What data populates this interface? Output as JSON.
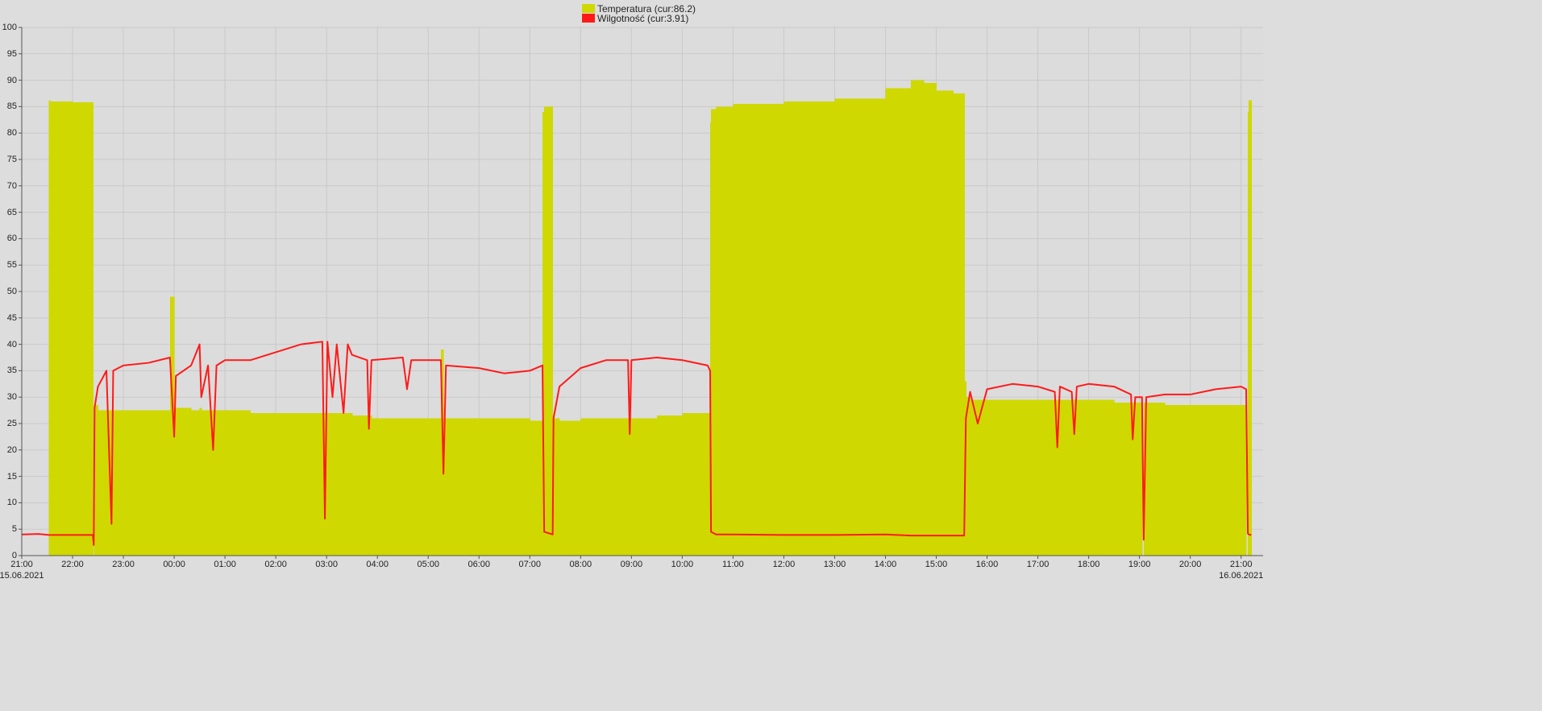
{
  "chart_data": {
    "type": "line",
    "grid": true,
    "xlim": [
      "15.06.2021 21:00",
      "16.06.2021 21:26"
    ],
    "ylim": [
      0,
      100
    ],
    "yticks": [
      0,
      5,
      10,
      15,
      20,
      25,
      30,
      35,
      40,
      45,
      50,
      55,
      60,
      65,
      70,
      75,
      80,
      85,
      90,
      95,
      100
    ],
    "xticks": [
      {
        "value": "15.06.2021 21:00",
        "label": "21:00\n15.06.2021"
      },
      {
        "value": "15.06.2021 22:00",
        "label": "22:00"
      },
      {
        "value": "15.06.2021 23:00",
        "label": "23:00"
      },
      {
        "value": "16.06.2021 00:00",
        "label": "00:00"
      },
      {
        "value": "16.06.2021 01:00",
        "label": "01:00"
      },
      {
        "value": "16.06.2021 02:00",
        "label": "02:00"
      },
      {
        "value": "16.06.2021 03:00",
        "label": "03:00"
      },
      {
        "value": "16.06.2021 04:00",
        "label": "04:00"
      },
      {
        "value": "16.06.2021 05:00",
        "label": "05:00"
      },
      {
        "value": "16.06.2021 06:00",
        "label": "06:00"
      },
      {
        "value": "16.06.2021 07:00",
        "label": "07:00"
      },
      {
        "value": "16.06.2021 08:00",
        "label": "08:00"
      },
      {
        "value": "16.06.2021 09:00",
        "label": "09:00"
      },
      {
        "value": "16.06.2021 10:00",
        "label": "10:00"
      },
      {
        "value": "16.06.2021 11:00",
        "label": "11:00"
      },
      {
        "value": "16.06.2021 12:00",
        "label": "12:00"
      },
      {
        "value": "16.06.2021 13:00",
        "label": "13:00"
      },
      {
        "value": "16.06.2021 14:00",
        "label": "14:00"
      },
      {
        "value": "16.06.2021 15:00",
        "label": "15:00"
      },
      {
        "value": "16.06.2021 16:00",
        "label": "16:00"
      },
      {
        "value": "16.06.2021 17:00",
        "label": "17:00"
      },
      {
        "value": "16.06.2021 18:00",
        "label": "18:00"
      },
      {
        "value": "16.06.2021 19:00",
        "label": "19:00"
      },
      {
        "value": "16.06.2021 20:00",
        "label": "20:00"
      },
      {
        "value": "16.06.2021 21:00",
        "label": "21:00\n16.06.2021"
      }
    ],
    "x": [
      "15.06.2021 21:00",
      "15.06.2021 21:20",
      "15.06.2021 21:32",
      "15.06.2021 21:33",
      "15.06.2021 22:00",
      "15.06.2021 22:24",
      "15.06.2021 22:25",
      "15.06.2021 22:26",
      "15.06.2021 22:30",
      "15.06.2021 22:40",
      "15.06.2021 22:46",
      "15.06.2021 22:48",
      "15.06.2021 23:00",
      "15.06.2021 23:30",
      "15.06.2021 23:55",
      "16.06.2021 00:00",
      "16.06.2021 00:02",
      "16.06.2021 00:20",
      "16.06.2021 00:30",
      "16.06.2021 00:32",
      "16.06.2021 00:40",
      "16.06.2021 00:46",
      "16.06.2021 00:50",
      "16.06.2021 01:00",
      "16.06.2021 01:30",
      "16.06.2021 02:00",
      "16.06.2021 02:30",
      "16.06.2021 02:55",
      "16.06.2021 02:58",
      "16.06.2021 03:01",
      "16.06.2021 03:07",
      "16.06.2021 03:12",
      "16.06.2021 03:20",
      "16.06.2021 03:25",
      "16.06.2021 03:30",
      "16.06.2021 03:48",
      "16.06.2021 03:50",
      "16.06.2021 03:53",
      "16.06.2021 04:30",
      "16.06.2021 04:35",
      "16.06.2021 04:40",
      "16.06.2021 05:15",
      "16.06.2021 05:18",
      "16.06.2021 05:21",
      "16.06.2021 06:00",
      "16.06.2021 06:30",
      "16.06.2021 07:00",
      "16.06.2021 07:15",
      "16.06.2021 07:17",
      "16.06.2021 07:27",
      "16.06.2021 07:28",
      "16.06.2021 07:35",
      "16.06.2021 08:00",
      "16.06.2021 08:30",
      "16.06.2021 08:56",
      "16.06.2021 08:58",
      "16.06.2021 09:00",
      "16.06.2021 09:30",
      "16.06.2021 10:00",
      "16.06.2021 10:30",
      "16.06.2021 10:33",
      "16.06.2021 10:34",
      "16.06.2021 10:40",
      "16.06.2021 11:00",
      "16.06.2021 12:00",
      "16.06.2021 13:00",
      "16.06.2021 14:00",
      "16.06.2021 14:30",
      "16.06.2021 14:45",
      "16.06.2021 15:00",
      "16.06.2021 15:20",
      "16.06.2021 15:33",
      "16.06.2021 15:35",
      "16.06.2021 15:40",
      "16.06.2021 15:49",
      "16.06.2021 16:00",
      "16.06.2021 16:30",
      "16.06.2021 17:00",
      "16.06.2021 17:20",
      "16.06.2021 17:23",
      "16.06.2021 17:26",
      "16.06.2021 17:40",
      "16.06.2021 17:43",
      "16.06.2021 17:46",
      "16.06.2021 18:00",
      "16.06.2021 18:30",
      "16.06.2021 18:50",
      "16.06.2021 18:52",
      "16.06.2021 18:55",
      "16.06.2021 19:03",
      "16.06.2021 19:05",
      "16.06.2021 19:08",
      "16.06.2021 19:30",
      "16.06.2021 20:00",
      "16.06.2021 20:30",
      "16.06.2021 21:00",
      "16.06.2021 21:06",
      "16.06.2021 21:08",
      "16.06.2021 21:09",
      "16.06.2021 21:12"
    ],
    "series": [
      {
        "name": "Temperatura (cur:86.2)",
        "type": "area",
        "color": "#cfd800",
        "values": [
          0,
          0,
          0,
          86.2,
          86,
          85.8,
          0,
          28,
          28.5,
          27.5,
          27.5,
          27.5,
          27.5,
          27.5,
          27.5,
          49,
          28,
          28,
          27.5,
          28,
          27.5,
          27.5,
          27.5,
          27.5,
          27.5,
          27,
          27,
          27,
          27,
          27,
          27,
          27,
          27,
          27,
          27,
          26.5,
          26.5,
          26.5,
          26,
          26,
          26,
          26,
          39,
          26,
          26,
          26,
          26,
          25.5,
          84,
          85,
          26.5,
          26,
          25.5,
          26,
          26,
          26,
          26,
          26,
          26.5,
          27,
          27,
          82,
          84.5,
          85,
          85.5,
          86,
          86.5,
          88.5,
          90,
          89.5,
          88,
          87.5,
          33,
          30,
          29.5,
          29.5,
          29.5,
          29.5,
          29.5,
          29.5,
          29.5,
          29.5,
          29.5,
          29.5,
          29.5,
          29.5,
          29,
          29,
          29,
          29,
          0,
          29,
          29,
          28.5,
          28.5,
          28.5,
          28.5,
          0,
          84,
          86.2
        ]
      },
      {
        "name": "Wilgotność (cur:3.91)",
        "type": "line",
        "color": "#ff1a1a",
        "values": [
          4.0,
          4.1,
          3.9,
          3.9,
          3.9,
          3.9,
          2,
          28,
          32,
          35,
          6,
          35,
          36,
          36.5,
          37.5,
          22.5,
          34,
          36,
          40,
          30,
          36,
          20,
          36,
          37,
          37,
          38.5,
          40,
          40.5,
          7,
          40.5,
          30,
          40,
          27,
          40,
          38,
          37,
          24,
          37,
          37.5,
          31.5,
          37,
          37,
          15.5,
          36,
          35.5,
          34.5,
          35,
          36,
          4.5,
          4,
          26,
          32,
          35.5,
          37,
          37,
          23,
          37,
          37.5,
          37,
          36,
          35,
          4.5,
          4,
          4,
          3.9,
          3.9,
          4,
          3.8,
          3.8,
          3.8,
          3.8,
          3.8,
          26,
          31,
          25,
          31.5,
          32.5,
          32,
          31,
          20.5,
          32,
          31,
          23,
          32,
          32.5,
          32,
          30.5,
          22,
          30,
          30,
          3,
          30,
          30.5,
          30.5,
          31.5,
          32,
          31.5,
          4.2,
          4,
          3.91
        ]
      }
    ]
  }
}
